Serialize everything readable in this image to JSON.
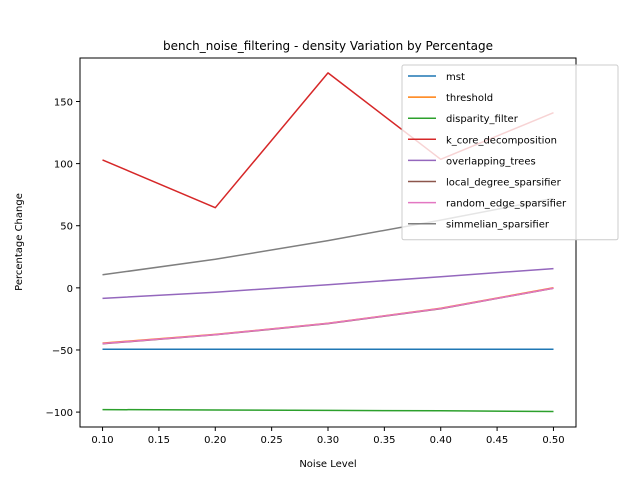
{
  "chart_data": {
    "type": "line",
    "title": "bench_noise_filtering - density Variation by Percentage",
    "xlabel": "Noise Level",
    "ylabel": "Percentage Change",
    "x": [
      0.1,
      0.2,
      0.3,
      0.4,
      0.5
    ],
    "xlim": [
      0.08,
      0.52
    ],
    "ylim": [
      -112,
      185
    ],
    "xticks": [
      0.1,
      0.15,
      0.2,
      0.25,
      0.3,
      0.35,
      0.4,
      0.45,
      0.5
    ],
    "xtick_labels": [
      "0.10",
      "0.15",
      "0.20",
      "0.25",
      "0.30",
      "0.35",
      "0.40",
      "0.45",
      "0.50"
    ],
    "yticks": [
      -100,
      -50,
      0,
      50,
      100,
      150
    ],
    "ytick_labels": [
      "−100",
      "−50",
      "0",
      "50",
      "100",
      "150"
    ],
    "grid": false,
    "legend_position": "top-right",
    "series": [
      {
        "name": "mst",
        "color": "#1f77b4",
        "values": [
          -49.5,
          -49.5,
          -49.5,
          -49.5,
          -49.5
        ]
      },
      {
        "name": "threshold",
        "color": "#ff7f0e",
        "values": [
          -44.5,
          -37.5,
          -28.5,
          -16.5,
          0.0
        ]
      },
      {
        "name": "disparity_filter",
        "color": "#2ca02c",
        "values": [
          -98.0,
          -98.3,
          -98.6,
          -99.0,
          -99.5
        ]
      },
      {
        "name": "k_core_decomposition",
        "color": "#d62728",
        "values": [
          103.0,
          64.5,
          173.0,
          103.5,
          141.0
        ]
      },
      {
        "name": "overlapping_trees",
        "color": "#9467bd",
        "values": [
          -8.5,
          -3.5,
          2.5,
          9.0,
          15.5
        ]
      },
      {
        "name": "local_degree_sparsifier",
        "color": "#8c564b",
        "values": [
          -45.0,
          -37.8,
          -28.8,
          -16.8,
          -0.3
        ]
      },
      {
        "name": "random_edge_sparsifier",
        "color": "#e377c2",
        "values": [
          -44.8,
          -37.6,
          -28.6,
          -16.6,
          -0.2
        ]
      },
      {
        "name": "simmelian_sparsifier",
        "color": "#7f7f7f",
        "values": [
          10.5,
          23.0,
          38.0,
          54.5,
          72.0
        ]
      }
    ]
  }
}
